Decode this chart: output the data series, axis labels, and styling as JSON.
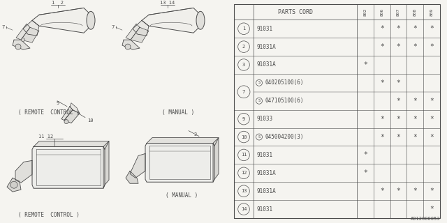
{
  "bg_color": "#f5f4f0",
  "line_color": "#4a4a4a",
  "col_headers": [
    "802",
    "806",
    "807",
    "808",
    "809"
  ],
  "rows": [
    {
      "num": "1",
      "s_prefix": false,
      "part": "91031",
      "marks": [
        false,
        true,
        true,
        true,
        true
      ],
      "merged_num": false
    },
    {
      "num": "2",
      "s_prefix": false,
      "part": "91031A",
      "marks": [
        false,
        true,
        true,
        true,
        true
      ],
      "merged_num": false
    },
    {
      "num": "3",
      "s_prefix": false,
      "part": "91031A",
      "marks": [
        true,
        false,
        false,
        false,
        false
      ],
      "merged_num": false
    },
    {
      "num": "7",
      "s_prefix": true,
      "part": "040205100(6)",
      "marks": [
        false,
        true,
        true,
        false,
        false
      ],
      "merged_num": true,
      "sub_index": 0
    },
    {
      "num": "7",
      "s_prefix": true,
      "part": "047105100(6)",
      "marks": [
        false,
        false,
        true,
        true,
        true
      ],
      "merged_num": true,
      "sub_index": 1
    },
    {
      "num": "9",
      "s_prefix": false,
      "part": "91033",
      "marks": [
        false,
        true,
        true,
        true,
        true
      ],
      "merged_num": false
    },
    {
      "num": "10",
      "s_prefix": true,
      "part": "045004200(3)",
      "marks": [
        false,
        true,
        true,
        true,
        true
      ],
      "merged_num": false
    },
    {
      "num": "11",
      "s_prefix": false,
      "part": "91031",
      "marks": [
        true,
        false,
        false,
        false,
        false
      ],
      "merged_num": false
    },
    {
      "num": "12",
      "s_prefix": false,
      "part": "91031A",
      "marks": [
        true,
        false,
        false,
        false,
        false
      ],
      "merged_num": false
    },
    {
      "num": "13",
      "s_prefix": false,
      "part": "91031A",
      "marks": [
        false,
        true,
        true,
        true,
        true
      ],
      "merged_num": false
    },
    {
      "num": "14",
      "s_prefix": false,
      "part": "91031",
      "marks": [
        false,
        false,
        false,
        false,
        true
      ],
      "merged_num": false
    }
  ],
  "footer": "A912000053"
}
